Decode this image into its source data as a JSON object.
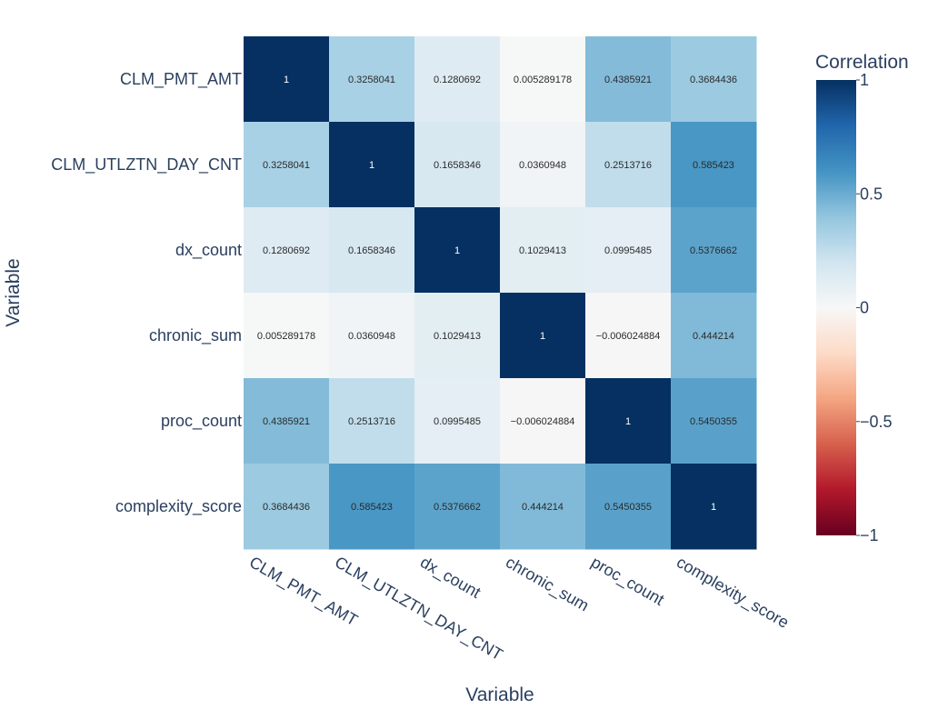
{
  "chart_data": {
    "type": "heatmap",
    "xlabel": "Variable",
    "ylabel": "Variable",
    "x_categories": [
      "CLM_PMT_AMT",
      "CLM_UTLZTN_DAY_CNT",
      "dx_count",
      "chronic_sum",
      "proc_count",
      "complexity_score"
    ],
    "y_categories": [
      "CLM_PMT_AMT",
      "CLM_UTLZTN_DAY_CNT",
      "dx_count",
      "chronic_sum",
      "proc_count",
      "complexity_score"
    ],
    "values": [
      [
        1,
        0.3258041,
        0.1280692,
        0.005289178,
        0.4385921,
        0.3684436
      ],
      [
        0.3258041,
        1,
        0.1658346,
        0.0360948,
        0.2513716,
        0.585423
      ],
      [
        0.1280692,
        0.1658346,
        1,
        0.1029413,
        0.0995485,
        0.5376662
      ],
      [
        0.005289178,
        0.0360948,
        0.1029413,
        1,
        -0.006024884,
        0.444214
      ],
      [
        0.4385921,
        0.2513716,
        0.0995485,
        -0.006024884,
        1,
        0.5450355
      ],
      [
        0.3684436,
        0.585423,
        0.5376662,
        0.444214,
        0.5450355,
        1
      ]
    ],
    "cell_labels": [
      [
        "1",
        "0.3258041",
        "0.1280692",
        "0.005289178",
        "0.4385921",
        "0.3684436"
      ],
      [
        "0.3258041",
        "1",
        "0.1658346",
        "0.0360948",
        "0.2513716",
        "0.585423"
      ],
      [
        "0.1280692",
        "0.1658346",
        "1",
        "0.1029413",
        "0.0995485",
        "0.5376662"
      ],
      [
        "0.005289178",
        "0.0360948",
        "0.1029413",
        "1",
        "−0.006024884",
        "0.444214"
      ],
      [
        "0.4385921",
        "0.2513716",
        "0.0995485",
        "−0.006024884",
        "1",
        "0.5450355"
      ],
      [
        "0.3684436",
        "0.585423",
        "0.5376662",
        "0.444214",
        "0.5450355",
        "1"
      ]
    ],
    "colorbar": {
      "title": "Correlation",
      "range": [
        -1,
        1
      ],
      "ticks": [
        1,
        0.5,
        0,
        -0.5,
        -1
      ],
      "tick_labels": [
        "1",
        "0.5",
        "0",
        "−0.5",
        "−1"
      ],
      "colorscale": "RdBu"
    }
  }
}
